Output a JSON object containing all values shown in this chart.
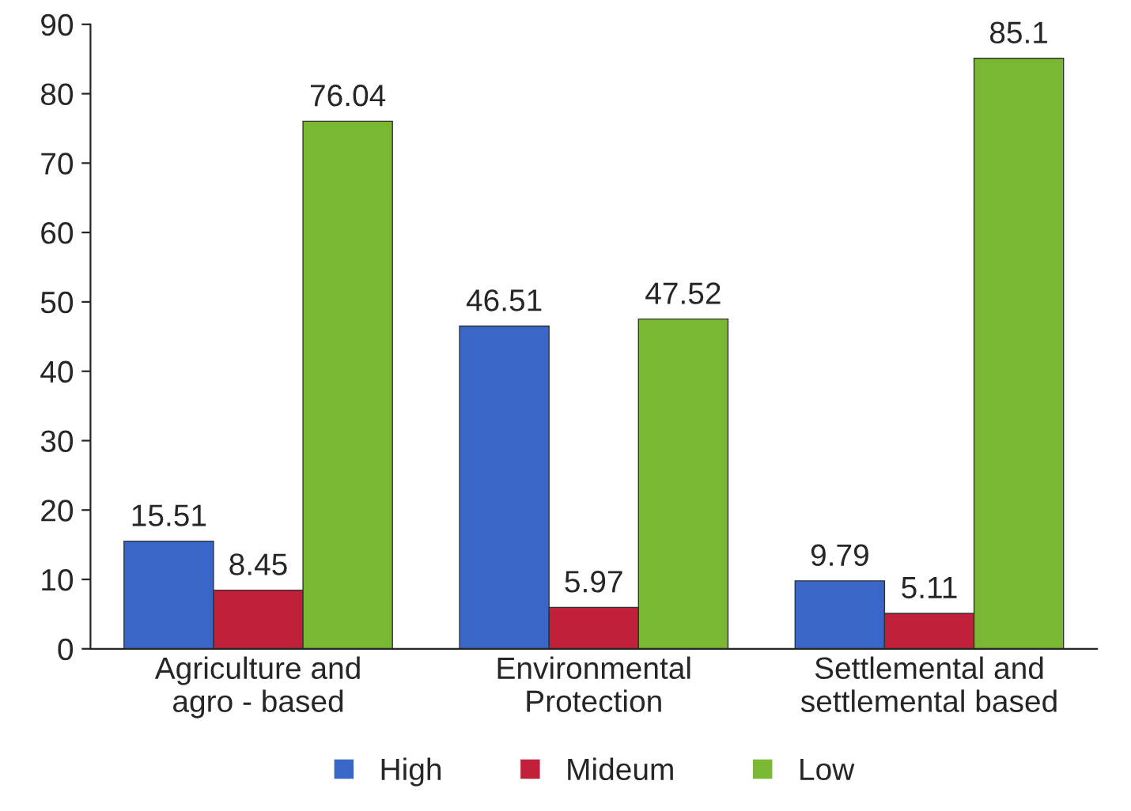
{
  "chart_data": {
    "type": "bar",
    "categories": [
      "Agriculture and\nagro - based",
      "Environmental\nProtection",
      "Settlemental and\nsettlemental based"
    ],
    "series": [
      {
        "name": "High",
        "color": "#3a66c8",
        "values": [
          15.51,
          46.51,
          9.79
        ]
      },
      {
        "name": "Mideum",
        "color": "#c0203a",
        "values": [
          8.45,
          5.97,
          5.11
        ]
      },
      {
        "name": "Low",
        "color": "#7ab834",
        "values": [
          76.04,
          47.52,
          85.1
        ]
      }
    ],
    "ylim": [
      0,
      90
    ],
    "yticks": [
      0,
      10,
      20,
      30,
      40,
      50,
      60,
      70,
      80,
      90
    ],
    "data_labels": true,
    "grid": false,
    "legend": "bottom"
  }
}
